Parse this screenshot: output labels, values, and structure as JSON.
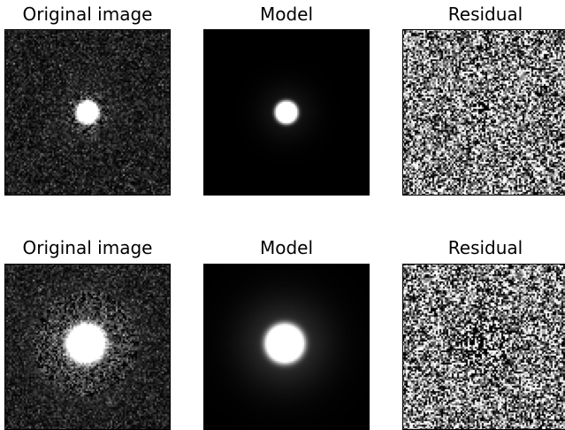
{
  "rows": [
    {
      "titles": [
        "Original image",
        "Model",
        "Residual"
      ],
      "panels": [
        "original",
        "model",
        "residual"
      ],
      "source": "small"
    },
    {
      "titles": [
        "Original image",
        "Model",
        "Residual"
      ],
      "panels": [
        "original",
        "model",
        "residual"
      ],
      "source": "large"
    }
  ],
  "colormap": "grayscale",
  "colors": {
    "background": "#ffffff",
    "frame": "#000000"
  }
}
